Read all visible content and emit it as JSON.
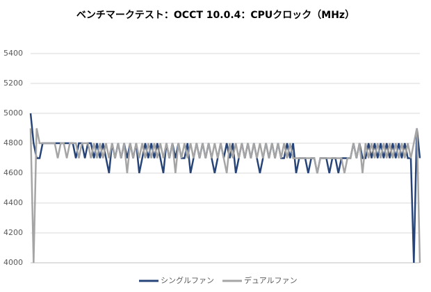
{
  "chart_data": {
    "type": "line",
    "title": "ベンチマークテスト：OCCT 10.0.4：CPUクロック（MHz）",
    "ylim": [
      4000,
      5400
    ],
    "yticks": [
      4000,
      4200,
      4400,
      4600,
      4800,
      5000,
      5200,
      5400
    ],
    "grid": true,
    "legend": "bottom",
    "series": [
      {
        "name": "シングルファン",
        "color": "#264478",
        "values": [
          5000,
          4800,
          4700,
          4700,
          4800,
          4800,
          4800,
          4800,
          4800,
          4800,
          4800,
          4800,
          4800,
          4800,
          4800,
          4700,
          4800,
          4800,
          4700,
          4800,
          4800,
          4700,
          4800,
          4700,
          4800,
          4700,
          4600,
          4800,
          4700,
          4800,
          4700,
          4800,
          4700,
          4800,
          4700,
          4800,
          4600,
          4700,
          4800,
          4700,
          4800,
          4700,
          4800,
          4700,
          4600,
          4800,
          4700,
          4800,
          4700,
          4800,
          4700,
          4700,
          4800,
          4600,
          4700,
          4800,
          4700,
          4800,
          4700,
          4800,
          4700,
          4600,
          4700,
          4800,
          4700,
          4800,
          4700,
          4800,
          4600,
          4700,
          4800,
          4700,
          4800,
          4700,
          4800,
          4700,
          4600,
          4700,
          4800,
          4700,
          4800,
          4700,
          4800,
          4700,
          4700,
          4800,
          4700,
          4800,
          4600,
          4700,
          4700,
          4700,
          4600,
          4700,
          4700,
          4600,
          4700,
          4700,
          4700,
          4600,
          4700,
          4700,
          4600,
          4700,
          4700,
          4700,
          4700,
          4800,
          4700,
          4800,
          4700,
          4700,
          4800,
          4700,
          4800,
          4700,
          4800,
          4700,
          4800,
          4700,
          4800,
          4700,
          4800,
          4700,
          4800,
          4700,
          4700,
          4000,
          4900,
          4700
        ]
      },
      {
        "name": "デュアルファン",
        "color": "#a5a5a5",
        "values": [
          4900,
          4000,
          4900,
          4800,
          4800,
          4800,
          4800,
          4800,
          4800,
          4700,
          4800,
          4800,
          4700,
          4800,
          4800,
          4800,
          4700,
          4800,
          4800,
          4800,
          4700,
          4800,
          4700,
          4800,
          4700,
          4800,
          4700,
          4800,
          4700,
          4800,
          4700,
          4800,
          4600,
          4800,
          4700,
          4800,
          4700,
          4800,
          4700,
          4800,
          4700,
          4800,
          4700,
          4800,
          4700,
          4800,
          4700,
          4800,
          4600,
          4800,
          4700,
          4800,
          4700,
          4800,
          4700,
          4800,
          4700,
          4800,
          4700,
          4800,
          4700,
          4800,
          4700,
          4800,
          4700,
          4600,
          4800,
          4700,
          4800,
          4700,
          4800,
          4700,
          4800,
          4700,
          4800,
          4700,
          4800,
          4700,
          4800,
          4700,
          4800,
          4700,
          4800,
          4700,
          4800,
          4700,
          4800,
          4700,
          4700,
          4700,
          4700,
          4700,
          4700,
          4700,
          4700,
          4600,
          4700,
          4700,
          4700,
          4700,
          4700,
          4700,
          4700,
          4700,
          4600,
          4700,
          4700,
          4800,
          4700,
          4800,
          4600,
          4800,
          4700,
          4800,
          4700,
          4800,
          4700,
          4800,
          4700,
          4800,
          4700,
          4800,
          4700,
          4800,
          4700,
          4800,
          4700,
          4800,
          4900,
          4000
        ]
      }
    ]
  }
}
